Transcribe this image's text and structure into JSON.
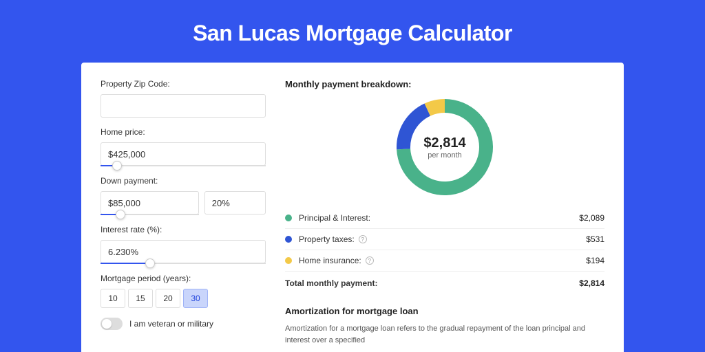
{
  "page": {
    "title": "San Lucas Mortgage Calculator",
    "background_color": "#3355ee",
    "panel_background": "#ffffff"
  },
  "form": {
    "zip_label": "Property Zip Code:",
    "zip_value": "",
    "home_price_label": "Home price:",
    "home_price_value": "$425,000",
    "home_price_slider_pct": 10,
    "down_payment_label": "Down payment:",
    "down_payment_value": "$85,000",
    "down_payment_pct_value": "20%",
    "down_payment_slider_pct": 20,
    "interest_label": "Interest rate (%):",
    "interest_value": "6.230%",
    "interest_slider_pct": 30,
    "period_label": "Mortgage period (years):",
    "periods": [
      "10",
      "15",
      "20",
      "30"
    ],
    "period_selected_index": 3,
    "veteran_label": "I am veteran or military",
    "veteran_on": false
  },
  "breakdown": {
    "title": "Monthly payment breakdown:",
    "center_value": "$2,814",
    "center_sub": "per month",
    "donut": {
      "thickness": 20,
      "radius_outer": 70,
      "slices": [
        {
          "label": "Principal & Interest:",
          "value_text": "$2,089",
          "value": 2089,
          "color": "#49b28a",
          "show_info": false
        },
        {
          "label": "Property taxes:",
          "value_text": "$531",
          "value": 531,
          "color": "#2f55d4",
          "show_info": true
        },
        {
          "label": "Home insurance:",
          "value_text": "$194",
          "value": 194,
          "color": "#f3c948",
          "show_info": true
        }
      ]
    },
    "total_label": "Total monthly payment:",
    "total_value": "$2,814"
  },
  "amortization": {
    "title": "Amortization for mortgage loan",
    "body": "Amortization for a mortgage loan refers to the gradual repayment of the loan principal and interest over a specified"
  }
}
